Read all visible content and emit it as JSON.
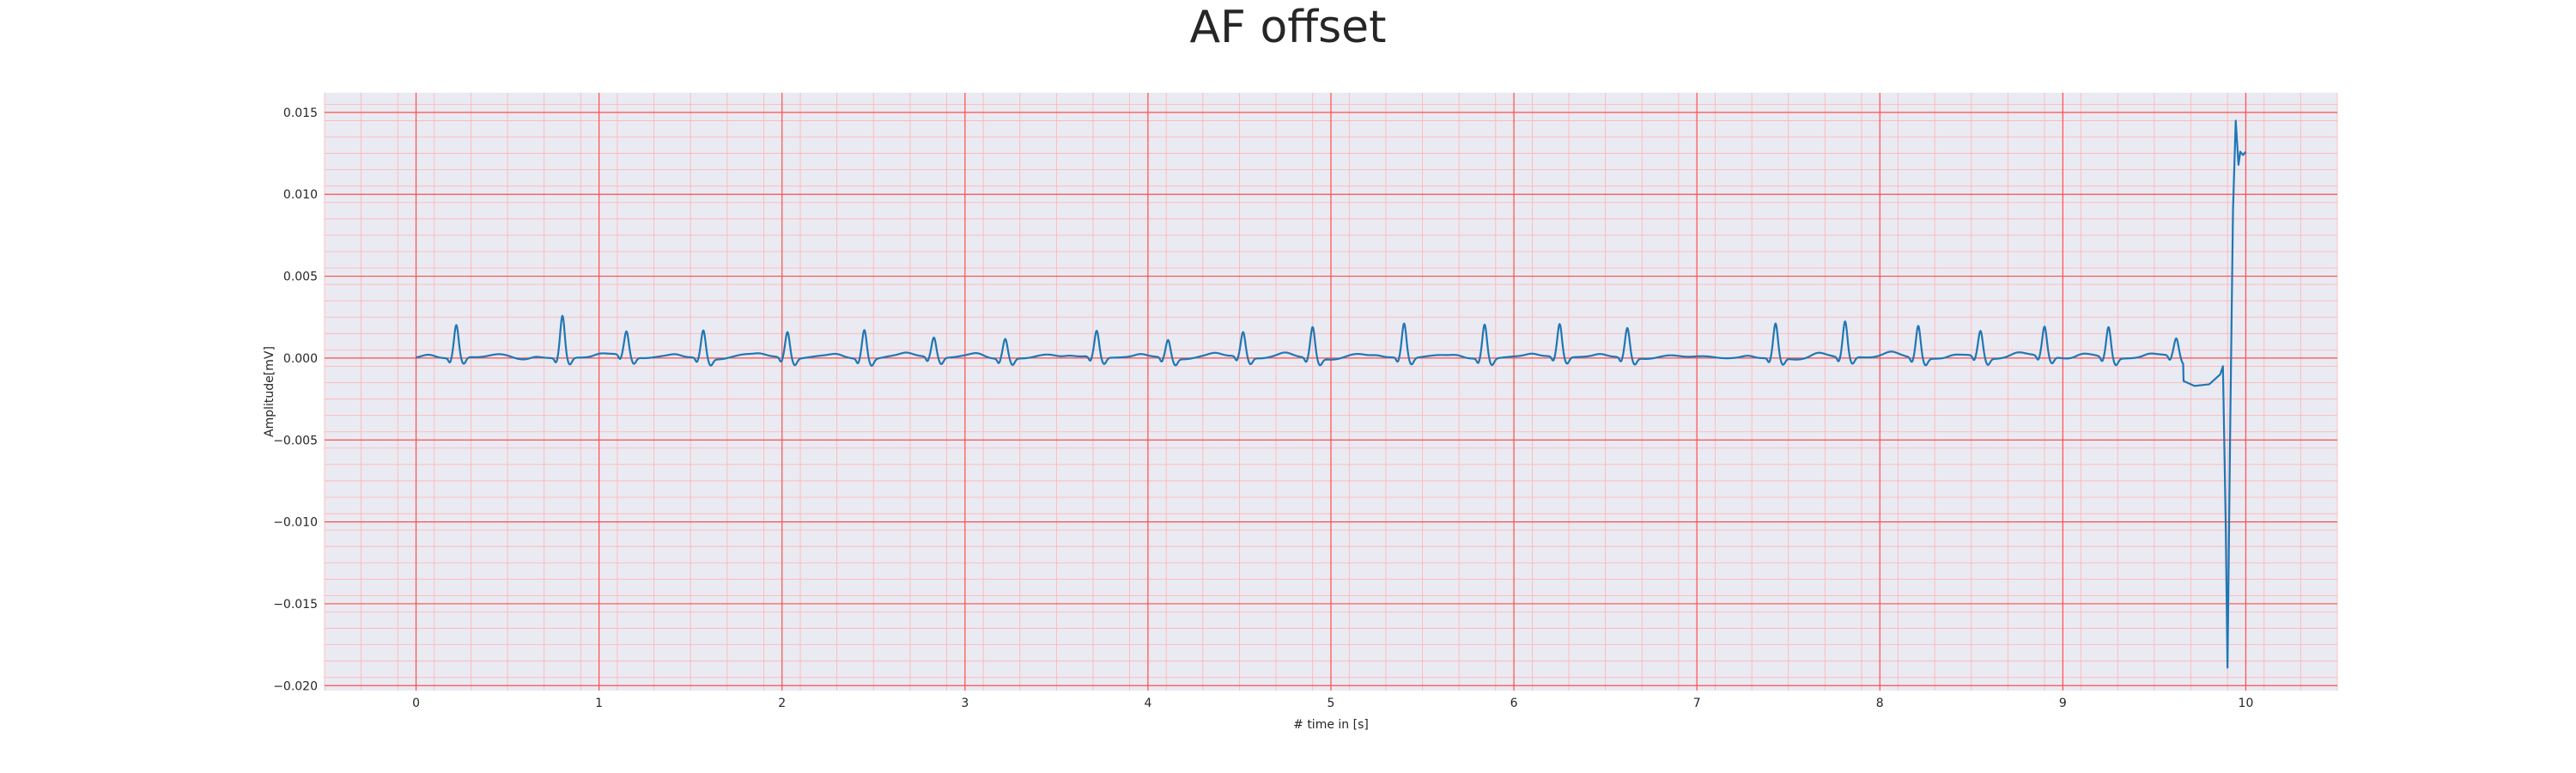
{
  "chart_data": {
    "type": "line",
    "title": "AF offset",
    "xlabel": "# time in [s]",
    "ylabel": "Amplitude[mV]",
    "xlim": [
      -0.5,
      10.5
    ],
    "ylim": [
      -0.0203,
      0.0162
    ],
    "x_ticks": [
      0,
      1,
      2,
      3,
      4,
      5,
      6,
      7,
      8,
      9,
      10
    ],
    "y_ticks": [
      -0.02,
      -0.015,
      -0.01,
      -0.005,
      0.0,
      0.005,
      0.01,
      0.015
    ],
    "x_tick_labels": [
      "0",
      "1",
      "2",
      "3",
      "4",
      "5",
      "6",
      "7",
      "8",
      "9",
      "10"
    ],
    "y_tick_labels": [
      "−0.020",
      "−0.015",
      "−0.010",
      "−0.005",
      "0.000",
      "0.005",
      "0.010",
      "0.015"
    ],
    "grid": "major and minor (ECG paper style)",
    "colors": {
      "background": "#eaeaf2",
      "major_grid": "#ff4d4d",
      "minor_grid": "#ffb3b3",
      "line": "#1f77b4"
    },
    "series": [
      {
        "beats": [
          {
            "t": 0.22,
            "a": 0.002
          },
          {
            "t": 0.8,
            "a": 0.0026
          },
          {
            "t": 1.15,
            "a": 0.0015
          },
          {
            "t": 1.57,
            "a": 0.0017
          },
          {
            "t": 2.03,
            "a": 0.0016
          },
          {
            "t": 2.45,
            "a": 0.0018
          },
          {
            "t": 2.83,
            "a": 0.0012
          },
          {
            "t": 3.22,
            "a": 0.0012
          },
          {
            "t": 3.72,
            "a": 0.0016
          },
          {
            "t": 4.11,
            "a": 0.0011
          },
          {
            "t": 4.52,
            "a": 0.0015
          },
          {
            "t": 4.9,
            "a": 0.0019
          },
          {
            "t": 5.4,
            "a": 0.0021
          },
          {
            "t": 5.84,
            "a": 0.0021
          },
          {
            "t": 6.25,
            "a": 0.002
          },
          {
            "t": 6.62,
            "a": 0.0018
          },
          {
            "t": 7.43,
            "a": 0.0021
          },
          {
            "t": 7.81,
            "a": 0.0022
          },
          {
            "t": 8.21,
            "a": 0.002
          },
          {
            "t": 8.55,
            "a": 0.0016
          },
          {
            "t": 8.9,
            "a": 0.0018
          },
          {
            "t": 9.25,
            "a": 0.0019
          },
          {
            "t": 9.62,
            "a": 0.0011
          }
        ],
        "end_transient": [
          {
            "x": 9.66,
            "y": -0.0014
          },
          {
            "x": 9.72,
            "y": -0.0017
          },
          {
            "x": 9.8,
            "y": -0.0016
          },
          {
            "x": 9.86,
            "y": -0.001
          },
          {
            "x": 9.875,
            "y": -0.0005
          },
          {
            "x": 9.89,
            "y": -0.01
          },
          {
            "x": 9.9,
            "y": -0.0189
          },
          {
            "x": 9.915,
            "y": -0.004
          },
          {
            "x": 9.93,
            "y": 0.009
          },
          {
            "x": 9.945,
            "y": 0.0145
          },
          {
            "x": 9.96,
            "y": 0.0118
          },
          {
            "x": 9.97,
            "y": 0.0126
          },
          {
            "x": 9.985,
            "y": 0.0124
          },
          {
            "x": 10.0,
            "y": 0.0126
          }
        ]
      }
    ]
  }
}
